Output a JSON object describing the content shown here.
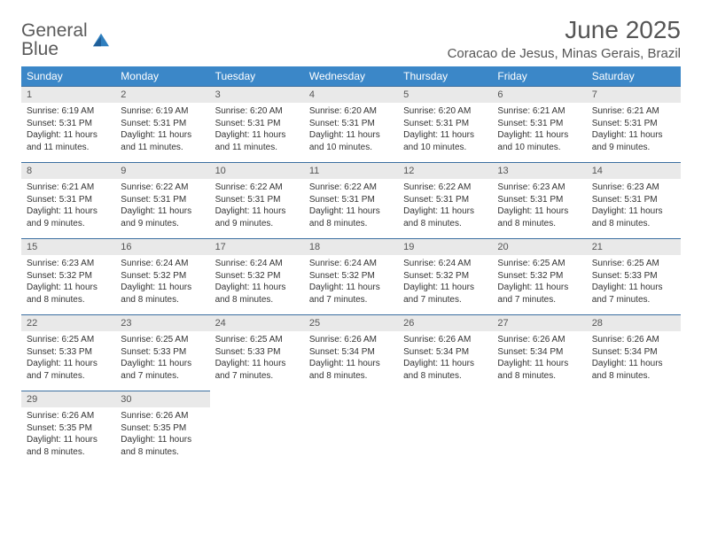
{
  "brand": {
    "word1": "General",
    "word2": "Blue",
    "sail_color": "#2f7fbf"
  },
  "title": "June 2025",
  "location": "Coracao de Jesus, Minas Gerais, Brazil",
  "colors": {
    "header_bg": "#3b87c8",
    "header_fg": "#ffffff",
    "daynum_bg": "#e9e9e9",
    "rule": "#3b6fa0",
    "text": "#333333",
    "title_text": "#555555"
  },
  "weekdays": [
    "Sunday",
    "Monday",
    "Tuesday",
    "Wednesday",
    "Thursday",
    "Friday",
    "Saturday"
  ],
  "weeks": [
    [
      {
        "n": "1",
        "sr": "6:19 AM",
        "ss": "5:31 PM",
        "dl": "11 hours and 11 minutes."
      },
      {
        "n": "2",
        "sr": "6:19 AM",
        "ss": "5:31 PM",
        "dl": "11 hours and 11 minutes."
      },
      {
        "n": "3",
        "sr": "6:20 AM",
        "ss": "5:31 PM",
        "dl": "11 hours and 11 minutes."
      },
      {
        "n": "4",
        "sr": "6:20 AM",
        "ss": "5:31 PM",
        "dl": "11 hours and 10 minutes."
      },
      {
        "n": "5",
        "sr": "6:20 AM",
        "ss": "5:31 PM",
        "dl": "11 hours and 10 minutes."
      },
      {
        "n": "6",
        "sr": "6:21 AM",
        "ss": "5:31 PM",
        "dl": "11 hours and 10 minutes."
      },
      {
        "n": "7",
        "sr": "6:21 AM",
        "ss": "5:31 PM",
        "dl": "11 hours and 9 minutes."
      }
    ],
    [
      {
        "n": "8",
        "sr": "6:21 AM",
        "ss": "5:31 PM",
        "dl": "11 hours and 9 minutes."
      },
      {
        "n": "9",
        "sr": "6:22 AM",
        "ss": "5:31 PM",
        "dl": "11 hours and 9 minutes."
      },
      {
        "n": "10",
        "sr": "6:22 AM",
        "ss": "5:31 PM",
        "dl": "11 hours and 9 minutes."
      },
      {
        "n": "11",
        "sr": "6:22 AM",
        "ss": "5:31 PM",
        "dl": "11 hours and 8 minutes."
      },
      {
        "n": "12",
        "sr": "6:22 AM",
        "ss": "5:31 PM",
        "dl": "11 hours and 8 minutes."
      },
      {
        "n": "13",
        "sr": "6:23 AM",
        "ss": "5:31 PM",
        "dl": "11 hours and 8 minutes."
      },
      {
        "n": "14",
        "sr": "6:23 AM",
        "ss": "5:31 PM",
        "dl": "11 hours and 8 minutes."
      }
    ],
    [
      {
        "n": "15",
        "sr": "6:23 AM",
        "ss": "5:32 PM",
        "dl": "11 hours and 8 minutes."
      },
      {
        "n": "16",
        "sr": "6:24 AM",
        "ss": "5:32 PM",
        "dl": "11 hours and 8 minutes."
      },
      {
        "n": "17",
        "sr": "6:24 AM",
        "ss": "5:32 PM",
        "dl": "11 hours and 8 minutes."
      },
      {
        "n": "18",
        "sr": "6:24 AM",
        "ss": "5:32 PM",
        "dl": "11 hours and 7 minutes."
      },
      {
        "n": "19",
        "sr": "6:24 AM",
        "ss": "5:32 PM",
        "dl": "11 hours and 7 minutes."
      },
      {
        "n": "20",
        "sr": "6:25 AM",
        "ss": "5:32 PM",
        "dl": "11 hours and 7 minutes."
      },
      {
        "n": "21",
        "sr": "6:25 AM",
        "ss": "5:33 PM",
        "dl": "11 hours and 7 minutes."
      }
    ],
    [
      {
        "n": "22",
        "sr": "6:25 AM",
        "ss": "5:33 PM",
        "dl": "11 hours and 7 minutes."
      },
      {
        "n": "23",
        "sr": "6:25 AM",
        "ss": "5:33 PM",
        "dl": "11 hours and 7 minutes."
      },
      {
        "n": "24",
        "sr": "6:25 AM",
        "ss": "5:33 PM",
        "dl": "11 hours and 7 minutes."
      },
      {
        "n": "25",
        "sr": "6:26 AM",
        "ss": "5:34 PM",
        "dl": "11 hours and 8 minutes."
      },
      {
        "n": "26",
        "sr": "6:26 AM",
        "ss": "5:34 PM",
        "dl": "11 hours and 8 minutes."
      },
      {
        "n": "27",
        "sr": "6:26 AM",
        "ss": "5:34 PM",
        "dl": "11 hours and 8 minutes."
      },
      {
        "n": "28",
        "sr": "6:26 AM",
        "ss": "5:34 PM",
        "dl": "11 hours and 8 minutes."
      }
    ],
    [
      {
        "n": "29",
        "sr": "6:26 AM",
        "ss": "5:35 PM",
        "dl": "11 hours and 8 minutes."
      },
      {
        "n": "30",
        "sr": "6:26 AM",
        "ss": "5:35 PM",
        "dl": "11 hours and 8 minutes."
      },
      null,
      null,
      null,
      null,
      null
    ]
  ],
  "labels": {
    "sunrise": "Sunrise: ",
    "sunset": "Sunset: ",
    "daylight": "Daylight: "
  }
}
